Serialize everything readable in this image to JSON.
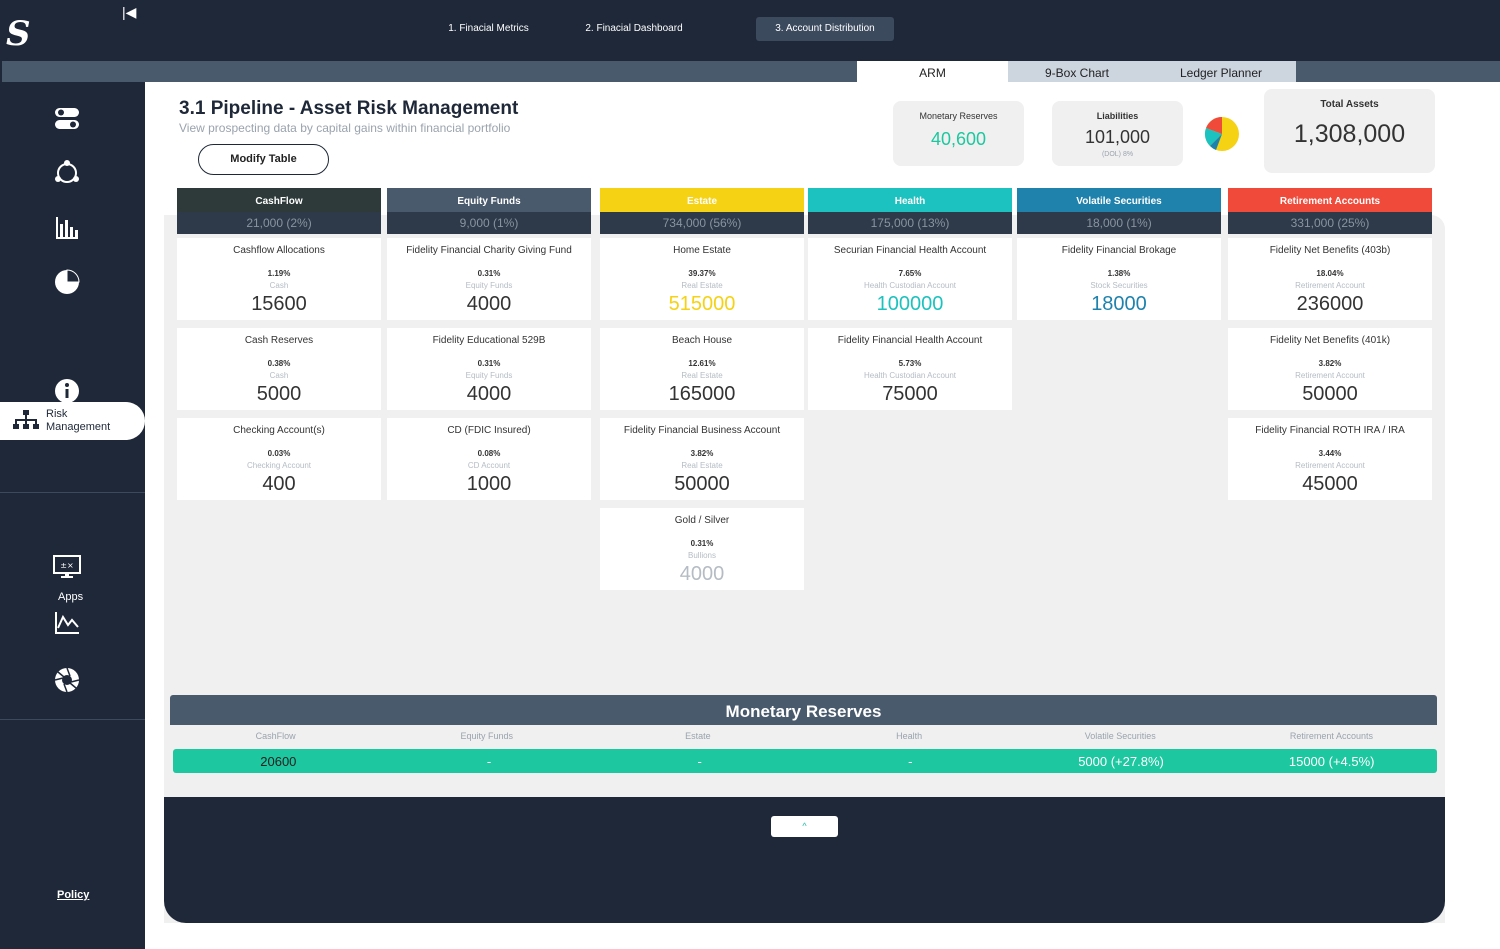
{
  "nav": {
    "tabs": [
      "1. Finacial Metrics",
      "2. Finacial Dashboard",
      "3. Account Distribution"
    ]
  },
  "content_tabs": [
    "ARM",
    "9-Box Chart",
    "Ledger Planner"
  ],
  "sidebar": {
    "risk_label_1": "Risk",
    "risk_label_2": "Management",
    "apps": "Apps",
    "policy": "Policy"
  },
  "header": {
    "title": "3.1 Pipeline - Asset Risk Management",
    "subtitle": "View prospecting data by capital gains within financial portfolio",
    "modify_button": "Modify Table"
  },
  "kpis": {
    "monetary": {
      "label": "Monetary Reserves",
      "value": "40,600"
    },
    "liabilities": {
      "label": "Liabilities",
      "value": "101,000",
      "sub": "(DOL)  8%"
    },
    "total": {
      "label": "Total Assets",
      "value": "1,308,000"
    }
  },
  "colors": {
    "cashflow": "#2e3a3a",
    "equity": "#4a5a6d",
    "estate": "#f5d213",
    "health": "#1cc2bf",
    "volatile": "#1e82ad",
    "retirement": "#ef4a3a",
    "accent": "#1dc79f"
  },
  "columns": [
    {
      "title": "CashFlow",
      "sub": "21,000  (2%)",
      "cards": [
        {
          "name": "Cashflow Allocations",
          "pct": "1.19%",
          "cat": "Cash",
          "value": "15600"
        },
        {
          "name": "Cash Reserves",
          "pct": "0.38%",
          "cat": "Cash",
          "value": "5000"
        },
        {
          "name": "Checking Account(s)",
          "pct": "0.03%",
          "cat": "Checking Account",
          "value": "400"
        }
      ]
    },
    {
      "title": "Equity Funds",
      "sub": "9,000  (1%)",
      "cards": [
        {
          "name": "Fidelity Financial Charity Giving Fund",
          "pct": "0.31%",
          "cat": "Equity Funds",
          "value": "4000"
        },
        {
          "name": "Fidelity Educational 529B",
          "pct": "0.31%",
          "cat": "Equity Funds",
          "value": "4000"
        },
        {
          "name": "CD (FDIC Insured)",
          "pct": "0.08%",
          "cat": "CD Account",
          "value": "1000"
        }
      ]
    },
    {
      "title": "Estate",
      "sub": "734,000  (56%)",
      "cards": [
        {
          "name": "Home Estate",
          "pct": "39.37%",
          "cat": "Real Estate",
          "value": "515000"
        },
        {
          "name": "Beach House",
          "pct": "12.61%",
          "cat": "Real Estate",
          "value": "165000"
        },
        {
          "name": "Fidelity Financial Business Account",
          "pct": "3.82%",
          "cat": "Real Estate",
          "value": "50000"
        },
        {
          "name": "Gold / Silver",
          "pct": "0.31%",
          "cat": "Bullions",
          "value": "4000"
        }
      ]
    },
    {
      "title": "Health",
      "sub": "175,000  (13%)",
      "cards": [
        {
          "name": "Securian Financial Health Account",
          "pct": "7.65%",
          "cat": "Health Custodian Account",
          "value": "100000"
        },
        {
          "name": "Fidelity Financial Health Account",
          "pct": "5.73%",
          "cat": "Health Custodian Account",
          "value": "75000"
        }
      ]
    },
    {
      "title": "Volatile Securities",
      "sub": "18,000  (1%)",
      "cards": [
        {
          "name": "Fidelity Financial Brokage",
          "pct": "1.38%",
          "cat": "Stock Securities",
          "value": "18000"
        }
      ]
    },
    {
      "title": "Retirement Accounts",
      "sub": "331,000  (25%)",
      "cards": [
        {
          "name": "Fidelity Net Benefits (403b)",
          "pct": "18.04%",
          "cat": "Retirement Account",
          "value": "236000"
        },
        {
          "name": "Fidelity Net Benefits (401k)",
          "pct": "3.82%",
          "cat": "Retirement Account",
          "value": "50000"
        },
        {
          "name": "Fidelity Financial ROTH IRA / IRA",
          "pct": "3.44%",
          "cat": "Retirement Account",
          "value": "45000"
        }
      ]
    }
  ],
  "monetary_reserves": {
    "title": "Monetary Reserves",
    "columns": [
      "CashFlow",
      "Equity Funds",
      "Estate",
      "Health",
      "Volatile Securities",
      "Retirement Accounts"
    ],
    "values": [
      "20600",
      "-",
      "-",
      "-",
      "5000  (+27.8%)",
      "15000  (+4.5%)"
    ]
  },
  "scroll_up_label": "^"
}
